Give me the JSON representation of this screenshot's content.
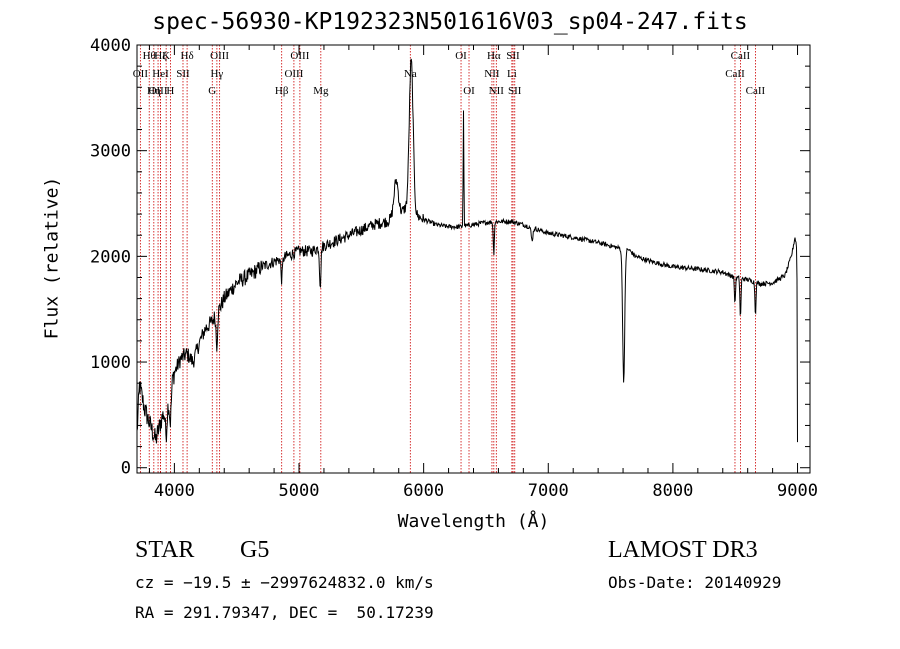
{
  "header": {
    "title": "spec-56930-KP192323N501616V03_sp04-247.fits"
  },
  "info": {
    "object_type": "STAR",
    "spectral_class": "G5",
    "survey": "LAMOST DR3",
    "cz": "cz = −19.5 ± −2997624832.0 km/s",
    "obs_date": "Obs-Date: 20140929",
    "radec": "RA = 291.79347, DEC =  50.17239"
  },
  "chart_data": {
    "type": "line",
    "title": "spec-56930-KP192323N501616V03_sp04-247.fits",
    "xlabel": "Wavelength (Å)",
    "ylabel": "Flux (relative)",
    "xlim": [
      3700,
      9100
    ],
    "ylim": [
      -50,
      4000
    ],
    "xticks": [
      4000,
      5000,
      6000,
      7000,
      8000,
      9000
    ],
    "yticks": [
      0,
      1000,
      2000,
      3000,
      4000
    ],
    "line_color": "#000000",
    "marker_color": "#cc0000",
    "continuum": [
      [
        3700,
        320
      ],
      [
        3720,
        780
      ],
      [
        3760,
        560
      ],
      [
        3800,
        420
      ],
      [
        3850,
        260
      ],
      [
        3900,
        470
      ],
      [
        3950,
        620
      ],
      [
        3980,
        820
      ],
      [
        4000,
        900
      ],
      [
        4050,
        1030
      ],
      [
        4100,
        1080
      ],
      [
        4150,
        1000
      ],
      [
        4200,
        1180
      ],
      [
        4250,
        1320
      ],
      [
        4300,
        1380
      ],
      [
        4350,
        1480
      ],
      [
        4400,
        1600
      ],
      [
        4500,
        1750
      ],
      [
        4600,
        1820
      ],
      [
        4700,
        1900
      ],
      [
        4800,
        1950
      ],
      [
        4900,
        2000
      ],
      [
        5000,
        2050
      ],
      [
        5100,
        2050
      ],
      [
        5200,
        2100
      ],
      [
        5300,
        2150
      ],
      [
        5400,
        2200
      ],
      [
        5500,
        2250
      ],
      [
        5600,
        2300
      ],
      [
        5700,
        2330
      ],
      [
        5800,
        2380
      ],
      [
        5850,
        2450
      ],
      [
        5900,
        2400
      ],
      [
        5950,
        2380
      ],
      [
        6000,
        2350
      ],
      [
        6100,
        2300
      ],
      [
        6200,
        2280
      ],
      [
        6300,
        2280
      ],
      [
        6400,
        2300
      ],
      [
        6500,
        2320
      ],
      [
        6600,
        2330
      ],
      [
        6700,
        2330
      ],
      [
        6800,
        2300
      ],
      [
        7000,
        2220
      ],
      [
        7200,
        2180
      ],
      [
        7400,
        2130
      ],
      [
        7500,
        2100
      ],
      [
        7560,
        2080
      ],
      [
        7650,
        2060
      ],
      [
        7700,
        2000
      ],
      [
        7800,
        1960
      ],
      [
        8000,
        1900
      ],
      [
        8200,
        1880
      ],
      [
        8400,
        1850
      ],
      [
        8500,
        1800
      ],
      [
        8600,
        1780
      ],
      [
        8700,
        1740
      ],
      [
        8800,
        1750
      ],
      [
        8900,
        1820
      ],
      [
        8950,
        2000
      ],
      [
        8980,
        2180
      ],
      [
        9000,
        2050
      ]
    ],
    "features": [
      {
        "x": 5900,
        "depth": -1450,
        "width": 22
      },
      {
        "x": 5780,
        "depth": -350,
        "width": 25
      },
      {
        "x": 6320,
        "depth": -1100,
        "width": 4
      },
      {
        "x": 7605,
        "depth": 1250,
        "width": 12
      },
      {
        "x": 6563,
        "depth": 300,
        "width": 6
      },
      {
        "x": 6870,
        "depth": 120,
        "width": 10
      },
      {
        "x": 8498,
        "depth": 250,
        "width": 6
      },
      {
        "x": 8542,
        "depth": 380,
        "width": 6
      },
      {
        "x": 8662,
        "depth": 300,
        "width": 6
      },
      {
        "x": 5170,
        "depth": 350,
        "width": 8
      },
      {
        "x": 3968,
        "depth": 300,
        "width": 10
      },
      {
        "x": 3934,
        "depth": 250,
        "width": 10
      },
      {
        "x": 4340,
        "depth": 300,
        "width": 8
      },
      {
        "x": 4861,
        "depth": 200,
        "width": 8
      },
      {
        "x": 9000,
        "depth": 1800,
        "width": 3
      }
    ],
    "lines": [
      {
        "label": "Hθ",
        "x": 3798,
        "row": 0
      },
      {
        "label": "Hζ",
        "x": 3889,
        "row": 0
      },
      {
        "label": "K",
        "x": 3934,
        "row": 0
      },
      {
        "label": "Hδ",
        "x": 4102,
        "row": 0
      },
      {
        "label": "OIII",
        "x": 4363,
        "row": 0
      },
      {
        "label": "OIII",
        "x": 5007,
        "row": 0
      },
      {
        "label": "OI",
        "x": 6300,
        "row": 0
      },
      {
        "label": "Hα",
        "x": 6563,
        "row": 0
      },
      {
        "label": "SII",
        "x": 6717,
        "row": 0
      },
      {
        "label": "CaII",
        "x": 8542,
        "row": 0
      },
      {
        "label": "OII",
        "x": 3727,
        "row": 1
      },
      {
        "label": "HeI",
        "x": 3889,
        "row": 1
      },
      {
        "label": "SII",
        "x": 4069,
        "row": 1
      },
      {
        "label": "Hγ",
        "x": 4341,
        "row": 1
      },
      {
        "label": "OIII",
        "x": 4959,
        "row": 1
      },
      {
        "label": "Na",
        "x": 5893,
        "row": 1
      },
      {
        "label": "NII",
        "x": 6548,
        "row": 1
      },
      {
        "label": "Li",
        "x": 6708,
        "row": 1
      },
      {
        "label": "CaII",
        "x": 8498,
        "row": 1
      },
      {
        "label": "OIII",
        "x": 3869,
        "row": 2
      },
      {
        "label": "Hη",
        "x": 3835,
        "row": 2
      },
      {
        "label": "H",
        "x": 3968,
        "row": 2
      },
      {
        "label": "G",
        "x": 4304,
        "row": 2
      },
      {
        "label": "Hβ",
        "x": 4861,
        "row": 2
      },
      {
        "label": "Mg",
        "x": 5175,
        "row": 2
      },
      {
        "label": "OI",
        "x": 6364,
        "row": 2
      },
      {
        "label": "NII",
        "x": 6583,
        "row": 2
      },
      {
        "label": "SII",
        "x": 6731,
        "row": 2
      },
      {
        "label": "CaII",
        "x": 8662,
        "row": 2
      }
    ]
  }
}
